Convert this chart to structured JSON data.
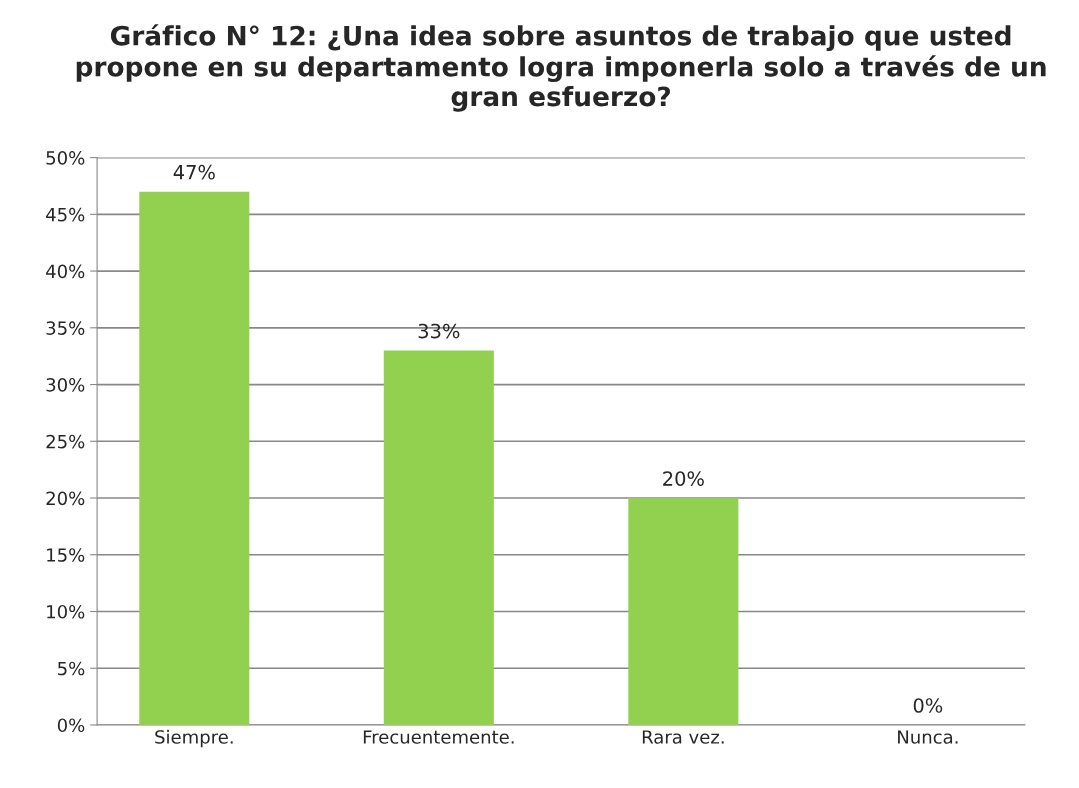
{
  "chart_data": {
    "type": "bar",
    "title": "Gráfico N° 12: ¿Una idea sobre asuntos de trabajo que usted propone en su departamento logra imponerla solo a través de un gran esfuerzo?",
    "categories": [
      "Siempre.",
      "Frecuentemente.",
      "Rara vez.",
      "Nunca."
    ],
    "values": [
      47,
      33,
      20,
      0
    ],
    "value_labels": [
      "47%",
      "33%",
      "20%",
      "0%"
    ],
    "color": "#92d050",
    "ylim": [
      0,
      50
    ],
    "yticks": [
      {
        "value": 0,
        "label": "0%"
      },
      {
        "value": 5,
        "label": "5%"
      },
      {
        "value": 10,
        "label": "10%"
      },
      {
        "value": 15,
        "label": "15%"
      },
      {
        "value": 20,
        "label": "20%"
      },
      {
        "value": 25,
        "label": "25%"
      },
      {
        "value": 30,
        "label": "30%"
      },
      {
        "value": 35,
        "label": "35%"
      },
      {
        "value": 40,
        "label": "40%"
      },
      {
        "value": 45,
        "label": "45%"
      },
      {
        "value": 50,
        "label": "50%"
      }
    ],
    "grid": "y",
    "legend": false
  }
}
